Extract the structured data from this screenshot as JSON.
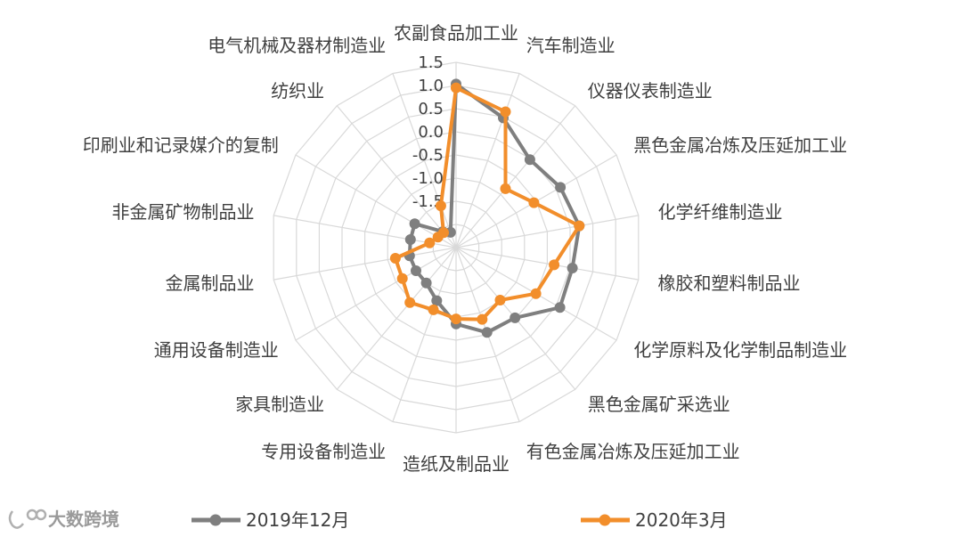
{
  "chart_data": {
    "type": "radar",
    "categories": [
      "农副食品加工业",
      "汽车制造业",
      "仪器仪表制造业",
      "黑色金属冶炼及压延加工业",
      "化学纤维制造业",
      "橡胶和塑料制品业",
      "化学原料及化学制品制造业",
      "黑色金属矿采选业",
      "有色金属冶炼及压延加工业",
      "造纸及制品业",
      "专用设备制造业",
      "家具制造业",
      "通用设备制造业",
      "金属制品业",
      "非金属矿物制品业",
      "印刷业和记录媒介的复制",
      "纺织业",
      "电气机械及器材制造业"
    ],
    "tick_labels": [
      "1.5",
      "1.0",
      "0.5",
      "0.0",
      "-0.5",
      "-1.0",
      "-1.5"
    ],
    "r_range": [
      -2.5,
      1.5
    ],
    "series": [
      {
        "name": "2019年12月",
        "color": "#7f7f7f",
        "values": [
          1.03,
          0.48,
          -0.02,
          0.1,
          0.2,
          0.05,
          0.09,
          -0.52,
          -0.55,
          -0.85,
          -1.28,
          -1.5,
          -1.5,
          -1.48,
          -1.5,
          -1.47,
          -2.05,
          -2.15
        ]
      },
      {
        "name": "2020年3月",
        "color": "#f28e2b",
        "values": [
          0.95,
          0.62,
          -0.84,
          -0.56,
          0.2,
          -0.35,
          -0.51,
          -1.02,
          -0.85,
          -0.96,
          -1.07,
          -0.95,
          -1.16,
          -1.17,
          -1.92,
          -2.05,
          -2.08,
          -1.54
        ]
      }
    ],
    "legend": "bottom",
    "grid": true
  },
  "watermark": {
    "text": "大数跨境"
  }
}
